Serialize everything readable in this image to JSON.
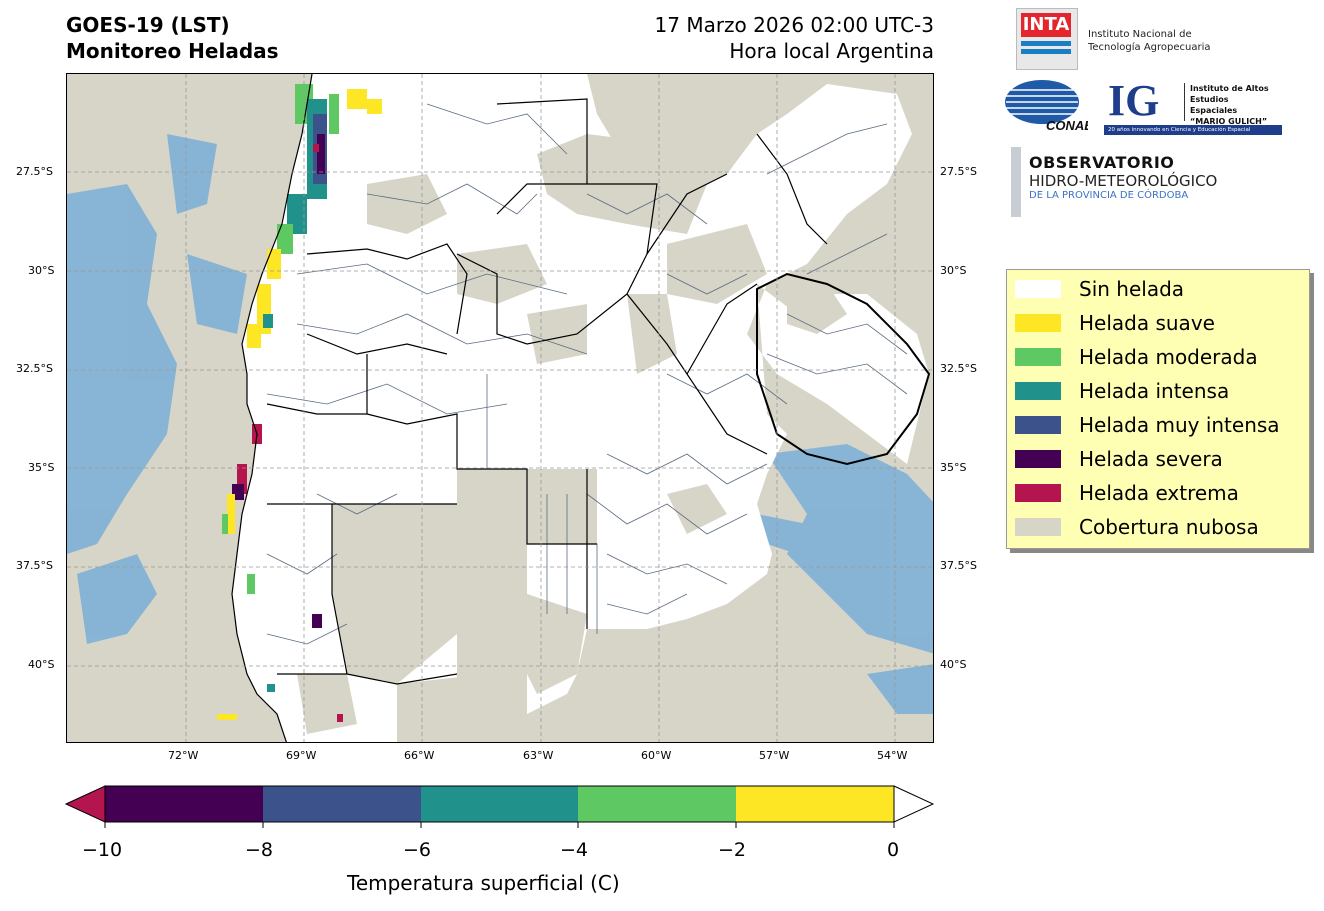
{
  "header": {
    "title_line1": "GOES-19 (LST)",
    "title_line2": "Monitoreo Heladas",
    "date_line": "17 Marzo 2026 02:00 UTC-3",
    "tz_line": "Hora local Argentina"
  },
  "map": {
    "lat_labels": [
      "27.5°S",
      "30°S",
      "32.5°S",
      "35°S",
      "37.5°S",
      "40°S"
    ],
    "lon_labels": [
      "72°W",
      "69°W",
      "66°W",
      "63°W",
      "60°W",
      "57°W",
      "54°W"
    ],
    "colors": {
      "land": "#ffffff",
      "cloud": "#d6d5c8",
      "ocean": "#7aafd8",
      "border": "#000000",
      "district": "#5a6b80"
    }
  },
  "legend": {
    "items": [
      {
        "label": "Sin helada",
        "color": "#ffffff"
      },
      {
        "label": "Helada suave",
        "color": "#fde725"
      },
      {
        "label": "Helada moderada",
        "color": "#5ec962"
      },
      {
        "label": "Helada intensa",
        "color": "#21918c"
      },
      {
        "label": "Helada muy intensa",
        "color": "#3b528b"
      },
      {
        "label": "Helada severa",
        "color": "#440154"
      },
      {
        "label": "Helada extrema",
        "color": "#b5154f"
      },
      {
        "label": "Cobertura nubosa",
        "color": "#d6d5c8"
      }
    ]
  },
  "colorbar": {
    "label": "Temperatura superficial (C)",
    "ticks": [
      "−10",
      "−8",
      "−6",
      "−4",
      "−2",
      "0"
    ],
    "segments": [
      "#440154",
      "#3b528b",
      "#21918c",
      "#5ec962",
      "#fde725"
    ],
    "under_color": "#b5154f",
    "over_color": "#ffffff"
  },
  "logos": {
    "inta_mark": "INTA",
    "inta_line1": "Instituto Nacional de",
    "inta_line2": "Tecnología Agropecuaria",
    "conae_mark": "CONAE",
    "ig_mark": "IG",
    "ig_line1": "Instituto de Altos",
    "ig_line2": "Estudios Espaciales",
    "ig_line3": "“MARIO GULICH”",
    "ig_tagline": "20 años innovando en Ciencia y Educación Espacial",
    "obs_line1": "OBSERVATORIO",
    "obs_line2": "HIDRO-METEOROLÓGICO",
    "obs_line3": "DE LA PROVINCIA DE CÓRDOBA"
  }
}
